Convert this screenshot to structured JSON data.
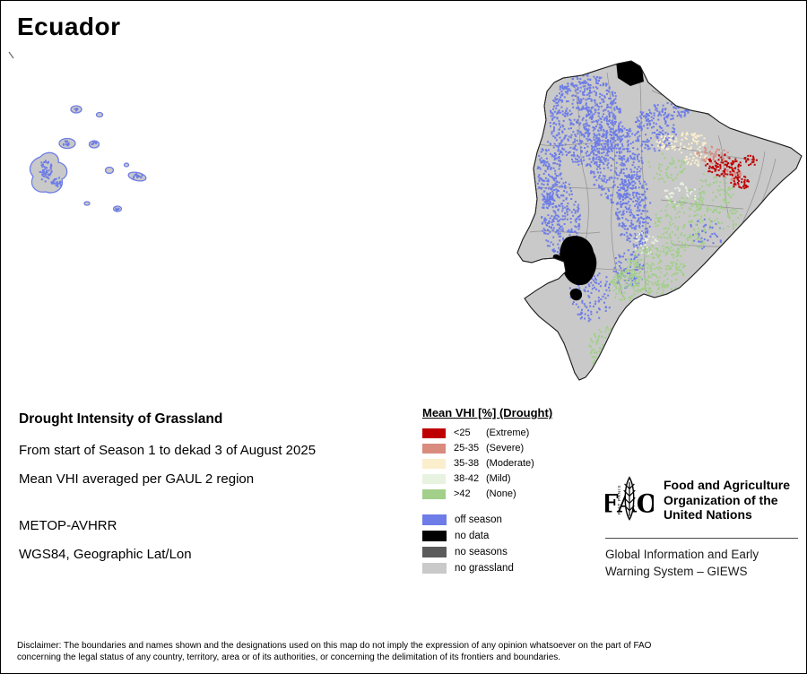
{
  "page": {
    "title": "Ecuador"
  },
  "info": {
    "heading": "Drought Intensity of Grassland",
    "period_line": "From start of Season 1 to dekad 3 of August 2025",
    "aggregation_line": "Mean VHI averaged per GAUL 2 region",
    "sensor_line": "METOP-AVHRR",
    "projection_line": "WGS84, Geographic Lat/Lon"
  },
  "legend": {
    "title": "Mean VHI [%] (Drought)",
    "classes": [
      {
        "value": "<25",
        "label": "(Extreme)",
        "color": "#bf0000"
      },
      {
        "value": "25-35",
        "label": "(Severe)",
        "color": "#d98b7e"
      },
      {
        "value": "35-38",
        "label": "(Moderate)",
        "color": "#fbeecd"
      },
      {
        "value": "38-42",
        "label": "(Mild)",
        "color": "#e8f2e0"
      },
      {
        "value": ">42",
        "label": "(None)",
        "color": "#a2cf8a"
      }
    ],
    "extra": [
      {
        "label": "off season",
        "color": "#6d7ce6"
      },
      {
        "label": "no data",
        "color": "#000000"
      },
      {
        "label": "no seasons",
        "color": "#5b5b5b"
      },
      {
        "label": "no grassland",
        "color": "#c9c9c9"
      }
    ]
  },
  "fao": {
    "acronym": "FAO",
    "motto": "FIAT PANIS",
    "org_lines": [
      "Food and Agriculture",
      "Organization of the",
      "United Nations"
    ],
    "giews_lines": [
      "Global Information and Early",
      "Warning System – GIEWS"
    ]
  },
  "disclaimer": {
    "lines": [
      "Disclaimer: The boundaries and names shown and the designations used on this map do not imply the expression of any opinion whatsoever on the part of FAO",
      "concerning the legal status of any country, territory, area or of its authorities, or concerning the delimitation of its frontiers and boundaries."
    ]
  }
}
